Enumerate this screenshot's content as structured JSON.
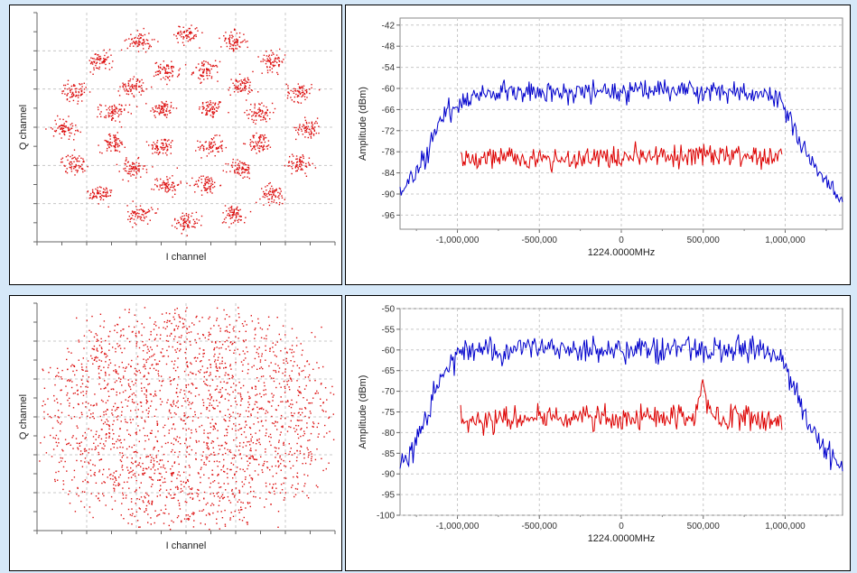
{
  "colors": {
    "background": "#d6e8f8",
    "panel": "#ffffff",
    "grid": "#c8c8c8",
    "constellation_points": "#dd1111",
    "signal_line": "#0000cc",
    "noise_line": "#dd0000"
  },
  "chart_data": [
    {
      "id": "constellation-top",
      "type": "scatter",
      "xlabel": "I channel",
      "ylabel": "Q channel",
      "grid": true,
      "tick_labels": "none",
      "pattern": "32APSK constellation, points scattered in clusters",
      "rings": [
        {
          "radius": 0.25,
          "count": 4,
          "phase_deg": 45
        },
        {
          "radius": 0.55,
          "count": 12,
          "phase_deg": 15
        },
        {
          "radius": 0.88,
          "count": 16,
          "phase_deg": 0
        }
      ],
      "cluster_spread": 0.045
    },
    {
      "id": "spectrum-top",
      "type": "line",
      "xlabel": "1224.0000MHz",
      "ylabel": "Amplitude (dBm)",
      "xlim": [
        -1350000,
        1350000
      ],
      "ylim": [
        -100,
        -40
      ],
      "xticks": [
        -1000000,
        -500000,
        0,
        500000,
        1000000
      ],
      "xtick_labels": [
        "-1,000,000",
        "-500,000",
        "0",
        "500,000",
        "1,000,000"
      ],
      "yticks": [
        -42,
        -48,
        -54,
        -60,
        -66,
        -72,
        -78,
        -84,
        -90,
        -96
      ],
      "grid": true,
      "series": [
        {
          "id": "signal",
          "color": "#0000cc",
          "x": [
            -1350000,
            -1280000,
            -1200000,
            -1130000,
            -1050000,
            -980000,
            -900000,
            -800000,
            -600000,
            -400000,
            -200000,
            0,
            200000,
            400000,
            600000,
            800000,
            900000,
            980000,
            1050000,
            1130000,
            1200000,
            1280000,
            1350000
          ],
          "y": [
            -90,
            -86,
            -80,
            -72,
            -66,
            -64,
            -62,
            -61,
            -61,
            -61,
            -61,
            -61,
            -61,
            -60,
            -61,
            -61,
            -62,
            -64,
            -70,
            -80,
            -84,
            -88,
            -92
          ],
          "noise_amplitude": 1.6
        },
        {
          "id": "noise",
          "color": "#dd0000",
          "x": [
            -980000,
            -500000,
            0,
            500000,
            980000
          ],
          "y": [
            -80,
            -80,
            -79.5,
            -79,
            -79.5
          ],
          "noise_amplitude": 1.5
        }
      ]
    },
    {
      "id": "constellation-bottom",
      "type": "scatter",
      "xlabel": "I channel",
      "ylabel": "Q channel",
      "grid": true,
      "tick_labels": "none",
      "pattern": "dense disk of scattered points",
      "rings": [
        {
          "radius": 0.25,
          "count": 4,
          "phase_deg": 45
        },
        {
          "radius": 0.55,
          "count": 12,
          "phase_deg": 15
        },
        {
          "radius": 0.88,
          "count": 16,
          "phase_deg": 0
        }
      ],
      "cluster_spread": 0.14
    },
    {
      "id": "spectrum-bottom",
      "type": "line",
      "xlabel": "1224.0000MHz",
      "ylabel": "Amplitude (dBm)",
      "xlim": [
        -1350000,
        1350000
      ],
      "ylim": [
        -100,
        -50
      ],
      "xticks": [
        -1000000,
        -500000,
        0,
        500000,
        1000000
      ],
      "xtick_labels": [
        "-1,000,000",
        "-500,000",
        "0",
        "500,000",
        "1,000,000"
      ],
      "yticks": [
        -50,
        -55,
        -60,
        -65,
        -70,
        -75,
        -80,
        -85,
        -90,
        -95,
        -100
      ],
      "grid": true,
      "series": [
        {
          "id": "signal",
          "color": "#0000cc",
          "x": [
            -1350000,
            -1280000,
            -1200000,
            -1130000,
            -1050000,
            -980000,
            -900000,
            -800000,
            -600000,
            -400000,
            -200000,
            0,
            200000,
            400000,
            600000,
            800000,
            900000,
            980000,
            1050000,
            1130000,
            1200000,
            1280000,
            1350000
          ],
          "y": [
            -88,
            -85,
            -78,
            -70,
            -63,
            -61,
            -60,
            -60,
            -60,
            -60,
            -60,
            -60,
            -60,
            -59,
            -60,
            -60,
            -60,
            -62,
            -68,
            -76,
            -82,
            -86,
            -89
          ],
          "noise_amplitude": 1.6
        },
        {
          "id": "noise",
          "color": "#dd0000",
          "x": [
            -980000,
            -500000,
            0,
            440000,
            480000,
            500000,
            520000,
            560000,
            600000,
            980000
          ],
          "y": [
            -77,
            -76.5,
            -76.5,
            -76,
            -72,
            -66,
            -72,
            -76,
            -76.5,
            -76.5
          ],
          "noise_amplitude": 1.5
        }
      ]
    }
  ]
}
